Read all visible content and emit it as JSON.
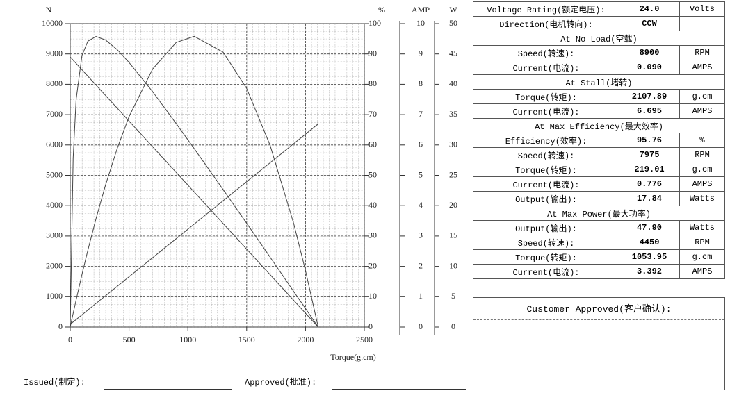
{
  "chart_data": {
    "type": "line",
    "xlabel": "Torque(g.cm)",
    "ylabel": "N",
    "y2label": "%",
    "y3label": "AMP",
    "y4label": "W",
    "xlim": [
      0,
      2500
    ],
    "xticks": [
      0,
      500,
      1000,
      1500,
      2000,
      2500
    ],
    "ylim": [
      0,
      10000
    ],
    "yticks": [
      0,
      1000,
      2000,
      3000,
      4000,
      5000,
      6000,
      7000,
      8000,
      9000,
      10000
    ],
    "y2lim": [
      0,
      100
    ],
    "y2ticks": [
      0,
      10,
      20,
      30,
      40,
      50,
      60,
      70,
      80,
      90,
      100
    ],
    "y3lim": [
      0,
      10
    ],
    "y3ticks": [
      0,
      1,
      2,
      3,
      4,
      5,
      6,
      7,
      8,
      9,
      10
    ],
    "y4lim": [
      0,
      50
    ],
    "y4ticks": [
      0,
      5,
      10,
      15,
      20,
      25,
      30,
      35,
      40,
      45,
      50
    ],
    "grid": true,
    "series": [
      {
        "axis": "y",
        "color": "#444444",
        "x": [
          0,
          2107.89
        ],
        "values": [
          8900,
          0
        ]
      },
      {
        "axis": "y3",
        "color": "#444444",
        "x": [
          0,
          2107.89
        ],
        "values": [
          0.09,
          6.695
        ]
      },
      {
        "axis": "y2",
        "color": "#444444",
        "x": [
          0,
          25,
          50,
          100,
          150,
          219.01,
          300,
          400,
          500,
          700,
          900,
          1053.95,
          1300,
          1500,
          1700,
          1900,
          2000,
          2107.89
        ],
        "values": [
          0,
          55.6,
          74.9,
          89.5,
          94.2,
          95.76,
          94.6,
          91.4,
          87.2,
          77.6,
          67.1,
          58.8,
          45.3,
          34.2,
          23.0,
          11.7,
          6.1,
          0
        ]
      },
      {
        "axis": "y4",
        "color": "#444444",
        "x": [
          0,
          25,
          50,
          100,
          150,
          219.01,
          300,
          400,
          500,
          700,
          900,
          1053.95,
          1300,
          1500,
          1700,
          1900,
          2000,
          2107.89
        ],
        "values": [
          0,
          2.25,
          4.44,
          8.66,
          12.66,
          17.84,
          23.39,
          29.46,
          34.67,
          42.5,
          46.88,
          47.9,
          45.29,
          39.32,
          29.9,
          17.03,
          9.3,
          0
        ]
      }
    ]
  },
  "table": {
    "rows": [
      [
        "Voltage Rating(额定电压):",
        "24.0",
        "Volts"
      ],
      [
        "Direction(电机转向):",
        "CCW",
        ""
      ],
      [
        "At No Load(空载)"
      ],
      [
        "Speed(转速):",
        "8900",
        "RPM"
      ],
      [
        "Current(电流):",
        "0.090",
        "AMPS"
      ],
      [
        "At Stall(堵转)"
      ],
      [
        "Torque(转矩):",
        "2107.89",
        "g.cm"
      ],
      [
        "Current(电流):",
        "6.695",
        "AMPS"
      ],
      [
        "At Max Efficiency(最大效率)"
      ],
      [
        "Efficiency(效率):",
        "95.76",
        "%"
      ],
      [
        "Speed(转速):",
        "7975",
        "RPM"
      ],
      [
        "Torque(转矩):",
        "219.01",
        "g.cm"
      ],
      [
        "Current(电流):",
        "0.776",
        "AMPS"
      ],
      [
        "Output(输出):",
        "17.84",
        "Watts"
      ],
      [
        "At Max Power(最大功率)"
      ],
      [
        "Output(输出):",
        "47.90",
        "Watts"
      ],
      [
        "Speed(转速):",
        "4450",
        "RPM"
      ],
      [
        "Torque(转矩):",
        "1053.95",
        "g.cm"
      ],
      [
        "Current(电流):",
        "3.392",
        "AMPS"
      ]
    ]
  },
  "customer": {
    "title": "Customer Approved(客户确认):"
  },
  "footer": {
    "issued": "Issued(制定):",
    "approved": "Approved(批准):"
  }
}
